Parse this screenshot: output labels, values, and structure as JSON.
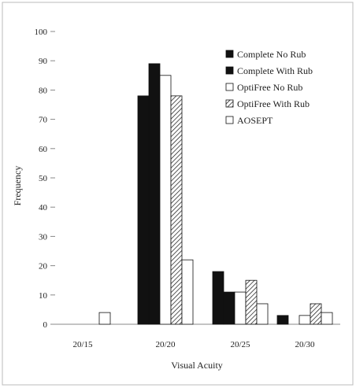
{
  "chart_data": {
    "type": "bar",
    "title": "",
    "xlabel": "Visual Acuity",
    "ylabel": "Frequency",
    "ylim": [
      0,
      100
    ],
    "yticks": [
      0,
      10,
      20,
      30,
      40,
      50,
      60,
      70,
      80,
      90,
      100
    ],
    "ytick_labels": [
      "0",
      "10",
      "20",
      "30",
      "40",
      "50",
      "60",
      "70",
      "80",
      "90",
      "100"
    ],
    "categories": [
      "20/15",
      "20/20",
      "20/25",
      "20/30"
    ],
    "legend_position": "top-right",
    "grid": false,
    "series": [
      {
        "name": "Complete No Rub",
        "values": [
          0,
          78,
          18,
          3
        ],
        "fill": "solid-black"
      },
      {
        "name": "Complete With Rub",
        "values": [
          0,
          89,
          11,
          0
        ],
        "fill": "solid-black"
      },
      {
        "name": "OptiFree No Rub",
        "values": [
          0,
          85,
          11,
          3
        ],
        "fill": "white"
      },
      {
        "name": "OptiFree With Rub",
        "values": [
          0,
          78,
          15,
          7
        ],
        "fill": "hatched"
      },
      {
        "name": "AOSEPT",
        "values": [
          4,
          22,
          7,
          4
        ],
        "fill": "white"
      }
    ],
    "colors": {
      "bar_stroke": "#111111",
      "solid": "#111111",
      "open": "#ffffff",
      "frame": "#bbbbbb"
    }
  }
}
